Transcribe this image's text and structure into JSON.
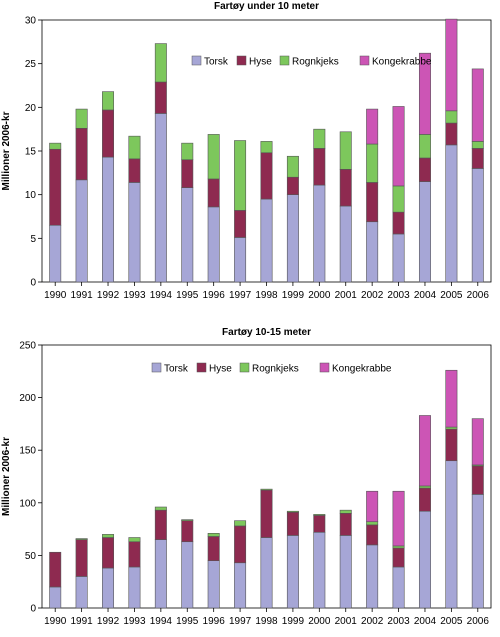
{
  "chart_data": [
    {
      "type": "bar",
      "stacked": true,
      "title": "Fartøy under 10 meter",
      "xlabel": "",
      "ylabel": "Millioner 2006-kr",
      "ylim": [
        0,
        30
      ],
      "yticks": [
        0,
        5,
        10,
        15,
        20,
        25,
        30
      ],
      "grid": false,
      "legend": "top-center",
      "categories": [
        "1990",
        "1991",
        "1992",
        "1993",
        "1994",
        "1995",
        "1996",
        "1997",
        "1998",
        "1999",
        "2000",
        "2001",
        "2002",
        "2003",
        "2004",
        "2005",
        "2006"
      ],
      "series": [
        {
          "name": "Torsk",
          "color": "#a6a6d6",
          "values": [
            6.5,
            11.7,
            14.3,
            11.4,
            19.3,
            10.8,
            8.6,
            5.1,
            9.5,
            10.0,
            11.1,
            8.7,
            6.9,
            5.5,
            11.5,
            15.7,
            13.0
          ]
        },
        {
          "name": "Hyse",
          "color": "#8e2a50",
          "values": [
            8.7,
            5.9,
            5.4,
            2.7,
            3.6,
            3.2,
            3.2,
            3.1,
            5.3,
            2.0,
            4.2,
            4.2,
            4.5,
            2.5,
            2.7,
            2.5,
            2.3
          ]
        },
        {
          "name": "Rognkjeks",
          "color": "#7dc75c",
          "values": [
            0.7,
            2.2,
            2.1,
            2.6,
            4.4,
            1.9,
            5.1,
            8.0,
            1.3,
            2.4,
            2.2,
            4.3,
            4.4,
            3.0,
            2.7,
            1.4,
            0.8
          ]
        },
        {
          "name": "Kongekrabbe",
          "color": "#cc55b5",
          "values": [
            0,
            0,
            0,
            0,
            0,
            0,
            0,
            0,
            0,
            0,
            0,
            0,
            4.0,
            9.1,
            9.3,
            10.5,
            8.3
          ]
        }
      ]
    },
    {
      "type": "bar",
      "stacked": true,
      "title": "Fartøy 10-15 meter",
      "xlabel": "",
      "ylabel": "Millioner 2006-kr",
      "ylim": [
        0,
        250
      ],
      "yticks": [
        0,
        50,
        100,
        150,
        200,
        250
      ],
      "grid": false,
      "legend": "top-center",
      "categories": [
        "1990",
        "1991",
        "1992",
        "1993",
        "1994",
        "1995",
        "1996",
        "1997",
        "1998",
        "1999",
        "2000",
        "2001",
        "2002",
        "2003",
        "2004",
        "2005",
        "2006"
      ],
      "series": [
        {
          "name": "Torsk",
          "color": "#a6a6d6",
          "values": [
            20,
            30,
            38,
            39,
            65,
            63,
            45,
            43,
            67,
            69,
            72,
            69,
            60,
            39,
            92,
            140,
            108
          ]
        },
        {
          "name": "Hyse",
          "color": "#8e2a50",
          "values": [
            33,
            35,
            29,
            24,
            28,
            20,
            23,
            35,
            45,
            22,
            16,
            21,
            19,
            18,
            22,
            30,
            27
          ]
        },
        {
          "name": "Rognkjeks",
          "color": "#7dc75c",
          "values": [
            0,
            1,
            3,
            4,
            3,
            1,
            3,
            5,
            1,
            1,
            1,
            3,
            3,
            2,
            2,
            2,
            1
          ]
        },
        {
          "name": "Kongekrabbe",
          "color": "#cc55b5",
          "values": [
            0,
            0,
            0,
            0,
            0,
            0,
            0,
            0,
            0,
            0,
            0,
            0,
            29,
            52,
            67,
            54,
            44
          ]
        }
      ]
    }
  ]
}
